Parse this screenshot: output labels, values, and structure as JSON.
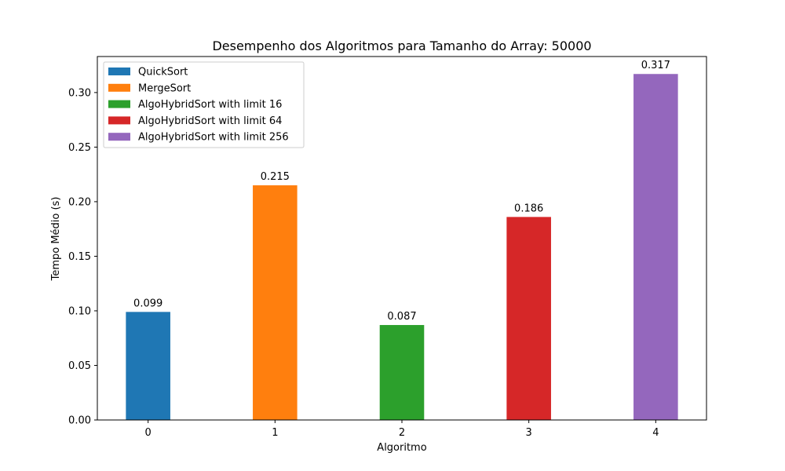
{
  "chart_data": {
    "type": "bar",
    "title": "Desempenho dos Algoritmos para Tamanho do Array: 50000",
    "xlabel": "Algoritmo",
    "ylabel": "Tempo Médio (s)",
    "categories": [
      "0",
      "1",
      "2",
      "3",
      "4"
    ],
    "series": [
      {
        "name": "QuickSort",
        "x": 0,
        "value": 0.099,
        "label": "0.099",
        "color": "#1f77b4"
      },
      {
        "name": "MergeSort",
        "x": 1,
        "value": 0.215,
        "label": "0.215",
        "color": "#ff7f0e"
      },
      {
        "name": "AlgoHybridSort with limit 16",
        "x": 2,
        "value": 0.087,
        "label": "0.087",
        "color": "#2ca02c"
      },
      {
        "name": "AlgoHybridSort with limit 64",
        "x": 3,
        "value": 0.186,
        "label": "0.186",
        "color": "#d62728"
      },
      {
        "name": "AlgoHybridSort with limit 256",
        "x": 4,
        "value": 0.317,
        "label": "0.317",
        "color": "#9467bd"
      }
    ],
    "yticks": [
      0.0,
      0.05,
      0.1,
      0.15,
      0.2,
      0.25,
      0.3
    ],
    "ytick_labels": [
      "0.00",
      "0.05",
      "0.10",
      "0.15",
      "0.20",
      "0.25",
      "0.30"
    ],
    "ylim": [
      0,
      0.333
    ],
    "xlim": [
      -0.4,
      4.4
    ],
    "grid": false,
    "legend_position": "top-left"
  }
}
